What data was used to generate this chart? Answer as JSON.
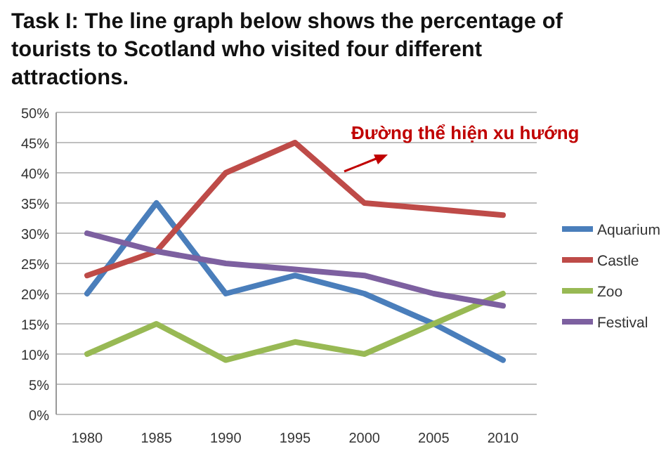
{
  "chart_data": {
    "type": "line",
    "title": "Task I: The line graph below shows the percentage of tourists to Scotland who visited four different attractions.",
    "categories": [
      "1980",
      "1985",
      "1990",
      "1995",
      "2000",
      "2005",
      "2010"
    ],
    "series": [
      {
        "name": "Aquarium",
        "color": "#4a7ebb",
        "values": [
          20,
          35,
          20,
          23,
          20,
          15,
          9
        ]
      },
      {
        "name": "Castle",
        "color": "#be4b48",
        "values": [
          23,
          27,
          40,
          45,
          35,
          34,
          33
        ]
      },
      {
        "name": "Zoo",
        "color": "#98b954",
        "values": [
          10,
          15,
          9,
          12,
          10,
          15,
          20
        ]
      },
      {
        "name": "Festival",
        "color": "#7d60a0",
        "values": [
          30,
          27,
          25,
          24,
          23,
          20,
          18
        ]
      }
    ],
    "ylim": [
      0,
      50
    ],
    "yticks": [
      {
        "value": 0,
        "label": "0%"
      },
      {
        "value": 5,
        "label": "5%"
      },
      {
        "value": 10,
        "label": "10%"
      },
      {
        "value": 15,
        "label": "15%"
      },
      {
        "value": 20,
        "label": "20%"
      },
      {
        "value": 25,
        "label": "25%"
      },
      {
        "value": 30,
        "label": "30%"
      },
      {
        "value": 35,
        "label": "35%"
      },
      {
        "value": 40,
        "label": "40%"
      },
      {
        "value": 45,
        "label": "45%"
      },
      {
        "value": 50,
        "label": "50%"
      }
    ],
    "grid": "y",
    "legend": "right",
    "marker": "none",
    "line_style": "solid",
    "annotations": [
      "Đường thể hiện xu hướng"
    ]
  }
}
